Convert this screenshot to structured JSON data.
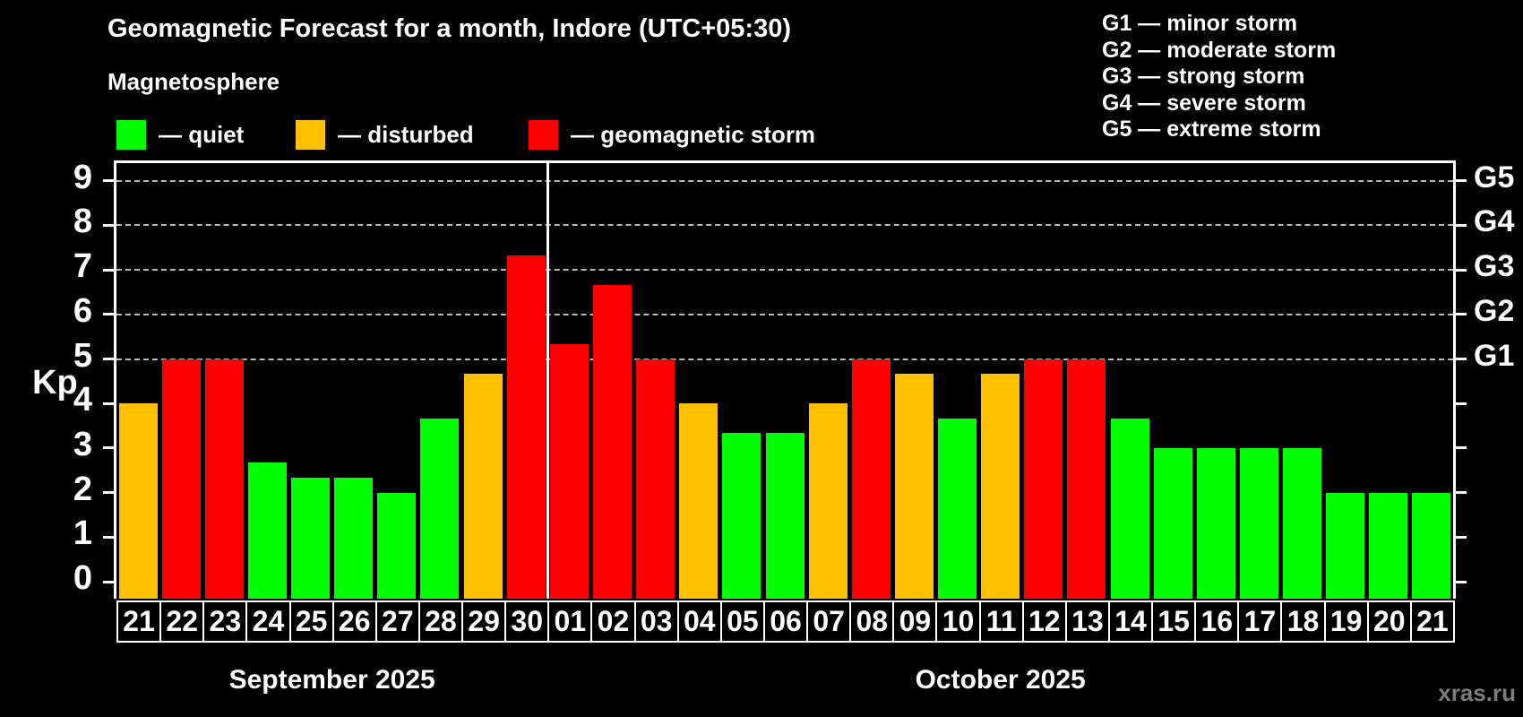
{
  "header": {
    "title": "Geomagnetic Forecast for a month, Indore (UTC+05:30)",
    "subtitle": "Magnetosphere"
  },
  "legend": {
    "items": [
      {
        "label": "— quiet",
        "state": "quiet"
      },
      {
        "label": "— disturbed",
        "state": "disturbed"
      },
      {
        "label": "— geomagnetic storm",
        "state": "storm"
      }
    ]
  },
  "g_legend": {
    "items": [
      {
        "label": "G1 — minor storm"
      },
      {
        "label": "G2 — moderate storm"
      },
      {
        "label": "G3 — strong storm"
      },
      {
        "label": "G4 — severe storm"
      },
      {
        "label": "G5 — extreme storm"
      }
    ]
  },
  "axis": {
    "kp_label": "Kp"
  },
  "watermark": "xras.ru",
  "colors": {
    "quiet": "#00ff00",
    "disturbed": "#ffc000",
    "storm": "#ff0000",
    "grid": "#b8b8b8",
    "axis": "#ffffff",
    "background": "#000000",
    "watermark": "#7d7d7d"
  },
  "chart_data": {
    "type": "bar",
    "title": "Geomagnetic Forecast for a month, Indore (UTC+05:30)",
    "subtitle": "Magnetosphere",
    "ylabel": "Kp",
    "ylim": [
      0,
      9
    ],
    "yticks": [
      0,
      1,
      2,
      3,
      4,
      5,
      6,
      7,
      8,
      9
    ],
    "gridline_kp": [
      5,
      6,
      7,
      8,
      9
    ],
    "grid": "dashed horizontal at Kp 5-9",
    "right_axis": [
      {
        "kp": 5,
        "label": "G1"
      },
      {
        "kp": 6,
        "label": "G2"
      },
      {
        "kp": 7,
        "label": "G3"
      },
      {
        "kp": 8,
        "label": "G4"
      },
      {
        "kp": 9,
        "label": "G5"
      }
    ],
    "categories": [
      "21",
      "22",
      "23",
      "24",
      "25",
      "26",
      "27",
      "28",
      "29",
      "30",
      "01",
      "02",
      "03",
      "04",
      "05",
      "06",
      "07",
      "08",
      "09",
      "10",
      "11",
      "12",
      "13",
      "14",
      "15",
      "16",
      "17",
      "18",
      "19",
      "20",
      "21"
    ],
    "values": [
      4.0,
      5.0,
      5.0,
      2.67,
      2.33,
      2.33,
      2.0,
      3.67,
      4.67,
      7.33,
      5.33,
      6.67,
      5.0,
      4.0,
      3.33,
      3.33,
      4.0,
      5.0,
      4.67,
      3.67,
      4.67,
      5.0,
      5.0,
      3.67,
      3.0,
      3.0,
      3.0,
      3.0,
      2.0,
      2.0,
      2.0
    ],
    "states": [
      "disturbed",
      "storm",
      "storm",
      "quiet",
      "quiet",
      "quiet",
      "quiet",
      "quiet",
      "disturbed",
      "storm",
      "storm",
      "storm",
      "storm",
      "disturbed",
      "quiet",
      "quiet",
      "disturbed",
      "storm",
      "disturbed",
      "quiet",
      "disturbed",
      "storm",
      "storm",
      "quiet",
      "quiet",
      "quiet",
      "quiet",
      "quiet",
      "quiet",
      "quiet",
      "quiet"
    ],
    "months": [
      {
        "label": "September 2025",
        "start": 0,
        "count": 10
      },
      {
        "label": "October 2025",
        "start": 10,
        "count": 21
      }
    ],
    "legend_position": "top-left and top-right",
    "legend_entries": [
      "— quiet",
      "— disturbed",
      "— geomagnetic storm",
      "G1 — minor storm",
      "G2 — moderate storm",
      "G3 — strong storm",
      "G4 — severe storm",
      "G5 — extreme storm"
    ]
  }
}
